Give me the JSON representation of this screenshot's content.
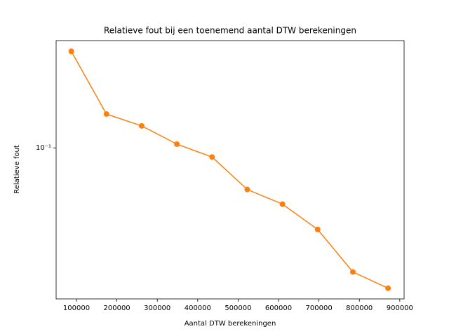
{
  "chart_data": {
    "type": "line",
    "title": "Relatieve fout bij een toenemend aantal DTW berekeningen",
    "xlabel": "Aantal DTW berekeningen",
    "ylabel": "Relatieve fout",
    "x": [
      87100,
      174200,
      261300,
      348400,
      435500,
      522600,
      609700,
      696800,
      783900,
      871000
    ],
    "series": [
      {
        "name": "Relatieve fout",
        "color": "#ff7f0e",
        "values": [
          0.35,
          0.155,
          0.133,
          0.105,
          0.0888,
          0.0583,
          0.0482,
          0.0347,
          0.02,
          0.0162
        ]
      }
    ],
    "xlim": [
      49650,
      910700
    ],
    "xticks": [
      100000,
      200000,
      300000,
      400000,
      500000,
      600000,
      700000,
      800000,
      900000
    ],
    "ylim": [
      0.0141,
      0.402
    ],
    "yticks": [
      {
        "value": 0.1,
        "label": "10⁻¹"
      }
    ],
    "yscale": "log",
    "grid": false,
    "legend": false
  }
}
